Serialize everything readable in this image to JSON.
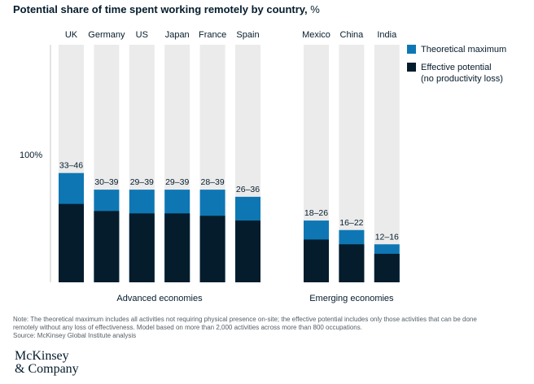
{
  "title": "Potential share of time spent working remotely by country,",
  "title_unit": "%",
  "legend": {
    "theoretical": "Theoretical maximum",
    "effective_line1": "Effective potential",
    "effective_line2": "(no productivity loss)"
  },
  "colors": {
    "background_bar": "#ebebeb",
    "theoretical": "#0e77b3",
    "effective": "#041c2c"
  },
  "note_line1": "Note: The theoretical maximum includes all activities not requiring physical presence on-site; the effective potential includes only those activities that can be done",
  "note_line2": "remotely without any loss of effectiveness. Model based on more than 2,000 activities across more than 800 occupations.",
  "source": "Source: McKinsey Global Institute analysis",
  "logo_line1": "McKinsey",
  "logo_line2": "& Company",
  "chart_data": {
    "type": "bar",
    "y_reference_label": "100%",
    "ylim": [
      0,
      100
    ],
    "series": [
      {
        "name": "Effective potential (no productivity loss)",
        "values": [
          33,
          30,
          29,
          29,
          28,
          26,
          18,
          16,
          12
        ]
      },
      {
        "name": "Theoretical maximum",
        "values": [
          46,
          39,
          39,
          39,
          39,
          36,
          26,
          22,
          16
        ]
      }
    ],
    "categories": [
      "UK",
      "Germany",
      "US",
      "Japan",
      "France",
      "Spain",
      "Mexico",
      "China",
      "India"
    ],
    "range_labels": [
      "33–46",
      "30–39",
      "29–39",
      "29–39",
      "28–39",
      "26–36",
      "18–26",
      "16–22",
      "12–16"
    ],
    "groups": [
      {
        "label": "Advanced economies",
        "count": 6
      },
      {
        "label": "Emerging economies",
        "count": 3
      }
    ]
  }
}
